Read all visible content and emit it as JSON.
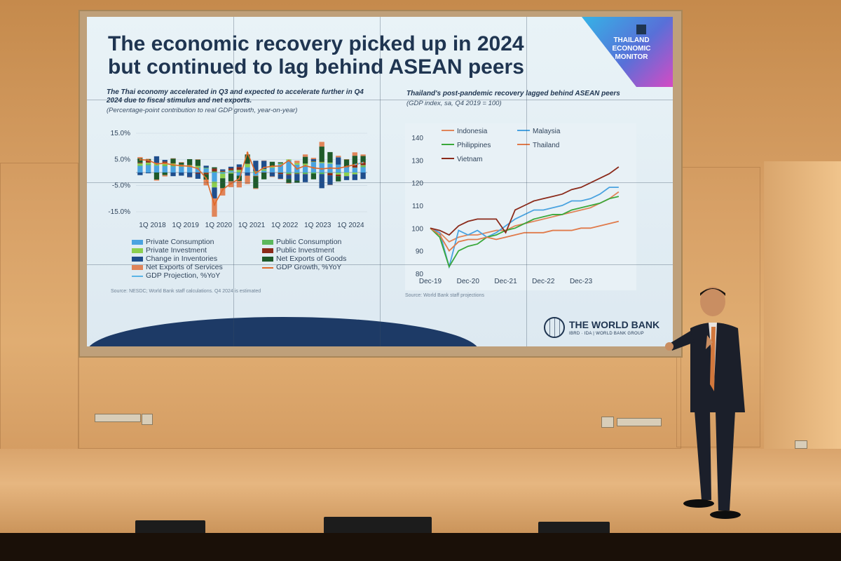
{
  "slide": {
    "title_line1": "The economic recovery picked up in 2024",
    "title_line2": "but continued to lag behind ASEAN peers",
    "badge_text": "THAILAND ECONOMIC MONITOR",
    "logo_name": "THE WORLD BANK",
    "logo_sub": "IBRD · IDA | WORLD BANK GROUP"
  },
  "left_chart": {
    "title": "The Thai economy accelerated in Q3 and expected to accelerate further in Q4 2024 due to fiscal stimulus and net exports.",
    "subtitle": "(Percentage-point contribution to real GDP growth, year-on-year)",
    "source": "Source: NESDC; World Bank staff calculations. Q4 2024 is estimated",
    "legend": [
      {
        "label": "Private Consumption",
        "color": "#4aa3e0"
      },
      {
        "label": "Public Consumption",
        "color": "#5cb85c"
      },
      {
        "label": "Private Investment",
        "color": "#8ccf4f"
      },
      {
        "label": "Public Investment",
        "color": "#8b2a1a"
      },
      {
        "label": "Change in Inventories",
        "color": "#1f4e8c"
      },
      {
        "label": "Net Exports of Goods",
        "color": "#1e5a2a"
      },
      {
        "label": "Net Exports of Services",
        "color": "#e0855a"
      },
      {
        "label": "GDP Growth, %YoY",
        "color": "#e06a2a"
      },
      {
        "label": "GDP Projection, %YoY",
        "color": "#5ab4e6"
      }
    ]
  },
  "right_chart": {
    "title": "Thailand's post-pandemic recovery lagged behind ASEAN peers",
    "subtitle": "(GDP index, sa, Q4 2019 = 100)",
    "source": "Source:   World Bank staff projections"
  },
  "chart_data": [
    {
      "type": "bar",
      "title": "The Thai economy accelerated in Q3 and expected to accelerate further in Q4 2024 due to fiscal stimulus and net exports.",
      "ylabel": "(Percentage-point contribution to real GDP growth, year-on-year)",
      "ylim": [
        -15,
        15
      ],
      "yticks": [
        "15.0%",
        "5.0%",
        "-5.0%",
        "-15.0%"
      ],
      "x_tick_labels": [
        "1Q 2018",
        "1Q 2019",
        "1Q 2020",
        "1Q 2021",
        "1Q 2022",
        "1Q 2023",
        "1Q 2024"
      ],
      "stacked": true,
      "x": [
        "1Q18",
        "2Q18",
        "3Q18",
        "4Q18",
        "1Q19",
        "2Q19",
        "3Q19",
        "4Q19",
        "1Q20",
        "2Q20",
        "3Q20",
        "4Q20",
        "1Q21",
        "2Q21",
        "3Q21",
        "4Q21",
        "1Q22",
        "2Q22",
        "3Q22",
        "4Q22",
        "1Q23",
        "2Q23",
        "3Q23",
        "4Q23",
        "1Q24",
        "2Q24",
        "3Q24",
        "4Q24"
      ],
      "series": [
        {
          "name": "Private Consumption",
          "values": [
            2.5,
            2.8,
            2.6,
            2.4,
            2.3,
            2.2,
            2.1,
            1.8,
            1.5,
            -3.5,
            -0.4,
            0.5,
            -1.2,
            2.0,
            -1.2,
            0.6,
            1.8,
            3.2,
            4.6,
            3.0,
            2.8,
            4.0,
            3.6,
            3.4,
            3.0,
            2.2,
            1.8,
            2.0
          ]
        },
        {
          "name": "Public Consumption",
          "values": [
            0.3,
            0.4,
            0.3,
            0.4,
            0.6,
            0.3,
            0.3,
            0.2,
            0.3,
            0.4,
            0.3,
            0.4,
            0.3,
            0.1,
            0.5,
            0.3,
            0.1,
            -0.1,
            -0.6,
            -0.4,
            -0.6,
            -0.4,
            -0.6,
            -0.2,
            -0.3,
            0.0,
            0.1,
            0.6
          ]
        },
        {
          "name": "Private Investment",
          "values": [
            0.7,
            0.6,
            0.7,
            0.9,
            0.7,
            0.4,
            0.4,
            0.5,
            -0.1,
            -2.2,
            -1.8,
            -0.4,
            0.7,
            1.2,
            -0.1,
            0.4,
            0.4,
            0.3,
            0.4,
            0.6,
            0.6,
            0.3,
            0.5,
            0.4,
            -0.5,
            -1.4,
            -0.7,
            0.2
          ]
        },
        {
          "name": "Public Investment",
          "values": [
            0.3,
            0.6,
            0.1,
            0.5,
            0.0,
            0.1,
            0.1,
            -0.4,
            -0.6,
            1.1,
            0.3,
            0.7,
            1.1,
            0.1,
            -0.2,
            -0.1,
            -0.1,
            -0.5,
            -0.4,
            -0.2,
            -0.1,
            0.0,
            0.0,
            -0.9,
            -0.6,
            0.0,
            1.1,
            1.0
          ]
        },
        {
          "name": "Change in Inventories",
          "values": [
            -1.0,
            -0.3,
            2.5,
            0.6,
            -1.4,
            -1.2,
            -1.8,
            -2.0,
            0.8,
            -4.2,
            0.6,
            0.6,
            1.0,
            -1.2,
            4.0,
            3.2,
            -1.4,
            -1.8,
            -1.5,
            -2.5,
            -3.0,
            0.8,
            -5.4,
            -3.6,
            2.8,
            -1.5,
            -2.2,
            -2.5
          ]
        },
        {
          "name": "Net Exports of Goods",
          "values": [
            1.6,
            0.8,
            -2.7,
            -1.0,
            1.8,
            0.8,
            2.2,
            2.5,
            -2.0,
            0.5,
            -3.8,
            -3.0,
            -2.0,
            3.5,
            -4.5,
            -2.5,
            1.8,
            0.4,
            -1.5,
            -0.8,
            2.6,
            -2.2,
            5.8,
            4.0,
            -2.0,
            2.8,
            3.4,
            2.5
          ]
        },
        {
          "name": "Net Exports of Services",
          "values": [
            0.5,
            0.0,
            -0.4,
            -0.5,
            0.0,
            0.2,
            -0.1,
            0.0,
            -2.2,
            -7.0,
            -2.8,
            -2.2,
            -2.5,
            -3.2,
            -0.3,
            0.1,
            -0.2,
            -0.2,
            -0.2,
            0.9,
            0.9,
            0.5,
            1.8,
            -0.1,
            0.6,
            0.1,
            1.3,
            0.6
          ]
        }
      ],
      "line_series": [
        {
          "name": "GDP Growth, %YoY",
          "values": [
            4.9,
            4.7,
            3.3,
            3.5,
            2.9,
            2.6,
            2.4,
            1.5,
            -2.2,
            -12.3,
            -6.5,
            -4.2,
            -2.4,
            7.6,
            -0.2,
            1.9,
            2.4,
            2.5,
            4.6,
            1.4,
            2.6,
            1.8,
            1.4,
            1.7,
            1.6,
            2.3,
            3.0,
            3.8
          ]
        },
        {
          "name": "GDP Projection, %YoY",
          "values": [
            null,
            null,
            null,
            null,
            null,
            null,
            null,
            null,
            null,
            null,
            null,
            null,
            null,
            null,
            null,
            null,
            null,
            null,
            null,
            null,
            null,
            null,
            null,
            null,
            null,
            null,
            3.0,
            3.8
          ]
        }
      ]
    },
    {
      "type": "line",
      "title": "Thailand's post-pandemic recovery lagged behind ASEAN peers",
      "ylabel": "(GDP index, sa, Q4 2019 = 100)",
      "ylim": [
        80,
        140
      ],
      "yticks": [
        140,
        130,
        120,
        110,
        100,
        90,
        80
      ],
      "x_tick_labels": [
        "Dec-19",
        "Dec-20",
        "Dec-21",
        "Dec-22",
        "Dec-23"
      ],
      "x": [
        "Q4-19",
        "Q1-20",
        "Q2-20",
        "Q3-20",
        "Q4-20",
        "Q1-21",
        "Q2-21",
        "Q3-21",
        "Q4-21",
        "Q1-22",
        "Q2-22",
        "Q3-22",
        "Q4-22",
        "Q1-23",
        "Q2-23",
        "Q3-23",
        "Q4-23",
        "Q1-24",
        "Q2-24",
        "Q3-24",
        "Q4-24"
      ],
      "series": [
        {
          "name": "Indonesia",
          "color": "#e0855a",
          "values": [
            100,
            98,
            94,
            96,
            97,
            97,
            98,
            99,
            99,
            101,
            102,
            103,
            104,
            105,
            106,
            107,
            108,
            109,
            111,
            113,
            116
          ]
        },
        {
          "name": "Malaysia",
          "color": "#4aa3e0",
          "values": [
            100,
            98,
            83,
            99,
            97,
            99,
            96,
            98,
            101,
            104,
            106,
            108,
            108,
            109,
            110,
            112,
            112,
            113,
            115,
            118,
            118
          ]
        },
        {
          "name": "Philippines",
          "color": "#3aa83a",
          "values": [
            100,
            96,
            83,
            90,
            92,
            93,
            96,
            97,
            99,
            100,
            102,
            104,
            105,
            106,
            106,
            108,
            109,
            110,
            111,
            113,
            114
          ]
        },
        {
          "name": "Thailand",
          "color": "#e07a4a",
          "values": [
            100,
            97,
            90,
            94,
            95,
            95,
            96,
            95,
            96,
            97,
            98,
            98,
            98,
            99,
            99,
            99,
            100,
            100,
            101,
            102,
            103
          ]
        },
        {
          "name": "Vietnam",
          "color": "#8b2a1a",
          "values": [
            100,
            99,
            97,
            101,
            103,
            104,
            104,
            104,
            98,
            108,
            110,
            112,
            113,
            114,
            115,
            117,
            118,
            120,
            122,
            124,
            127
          ]
        }
      ]
    }
  ]
}
